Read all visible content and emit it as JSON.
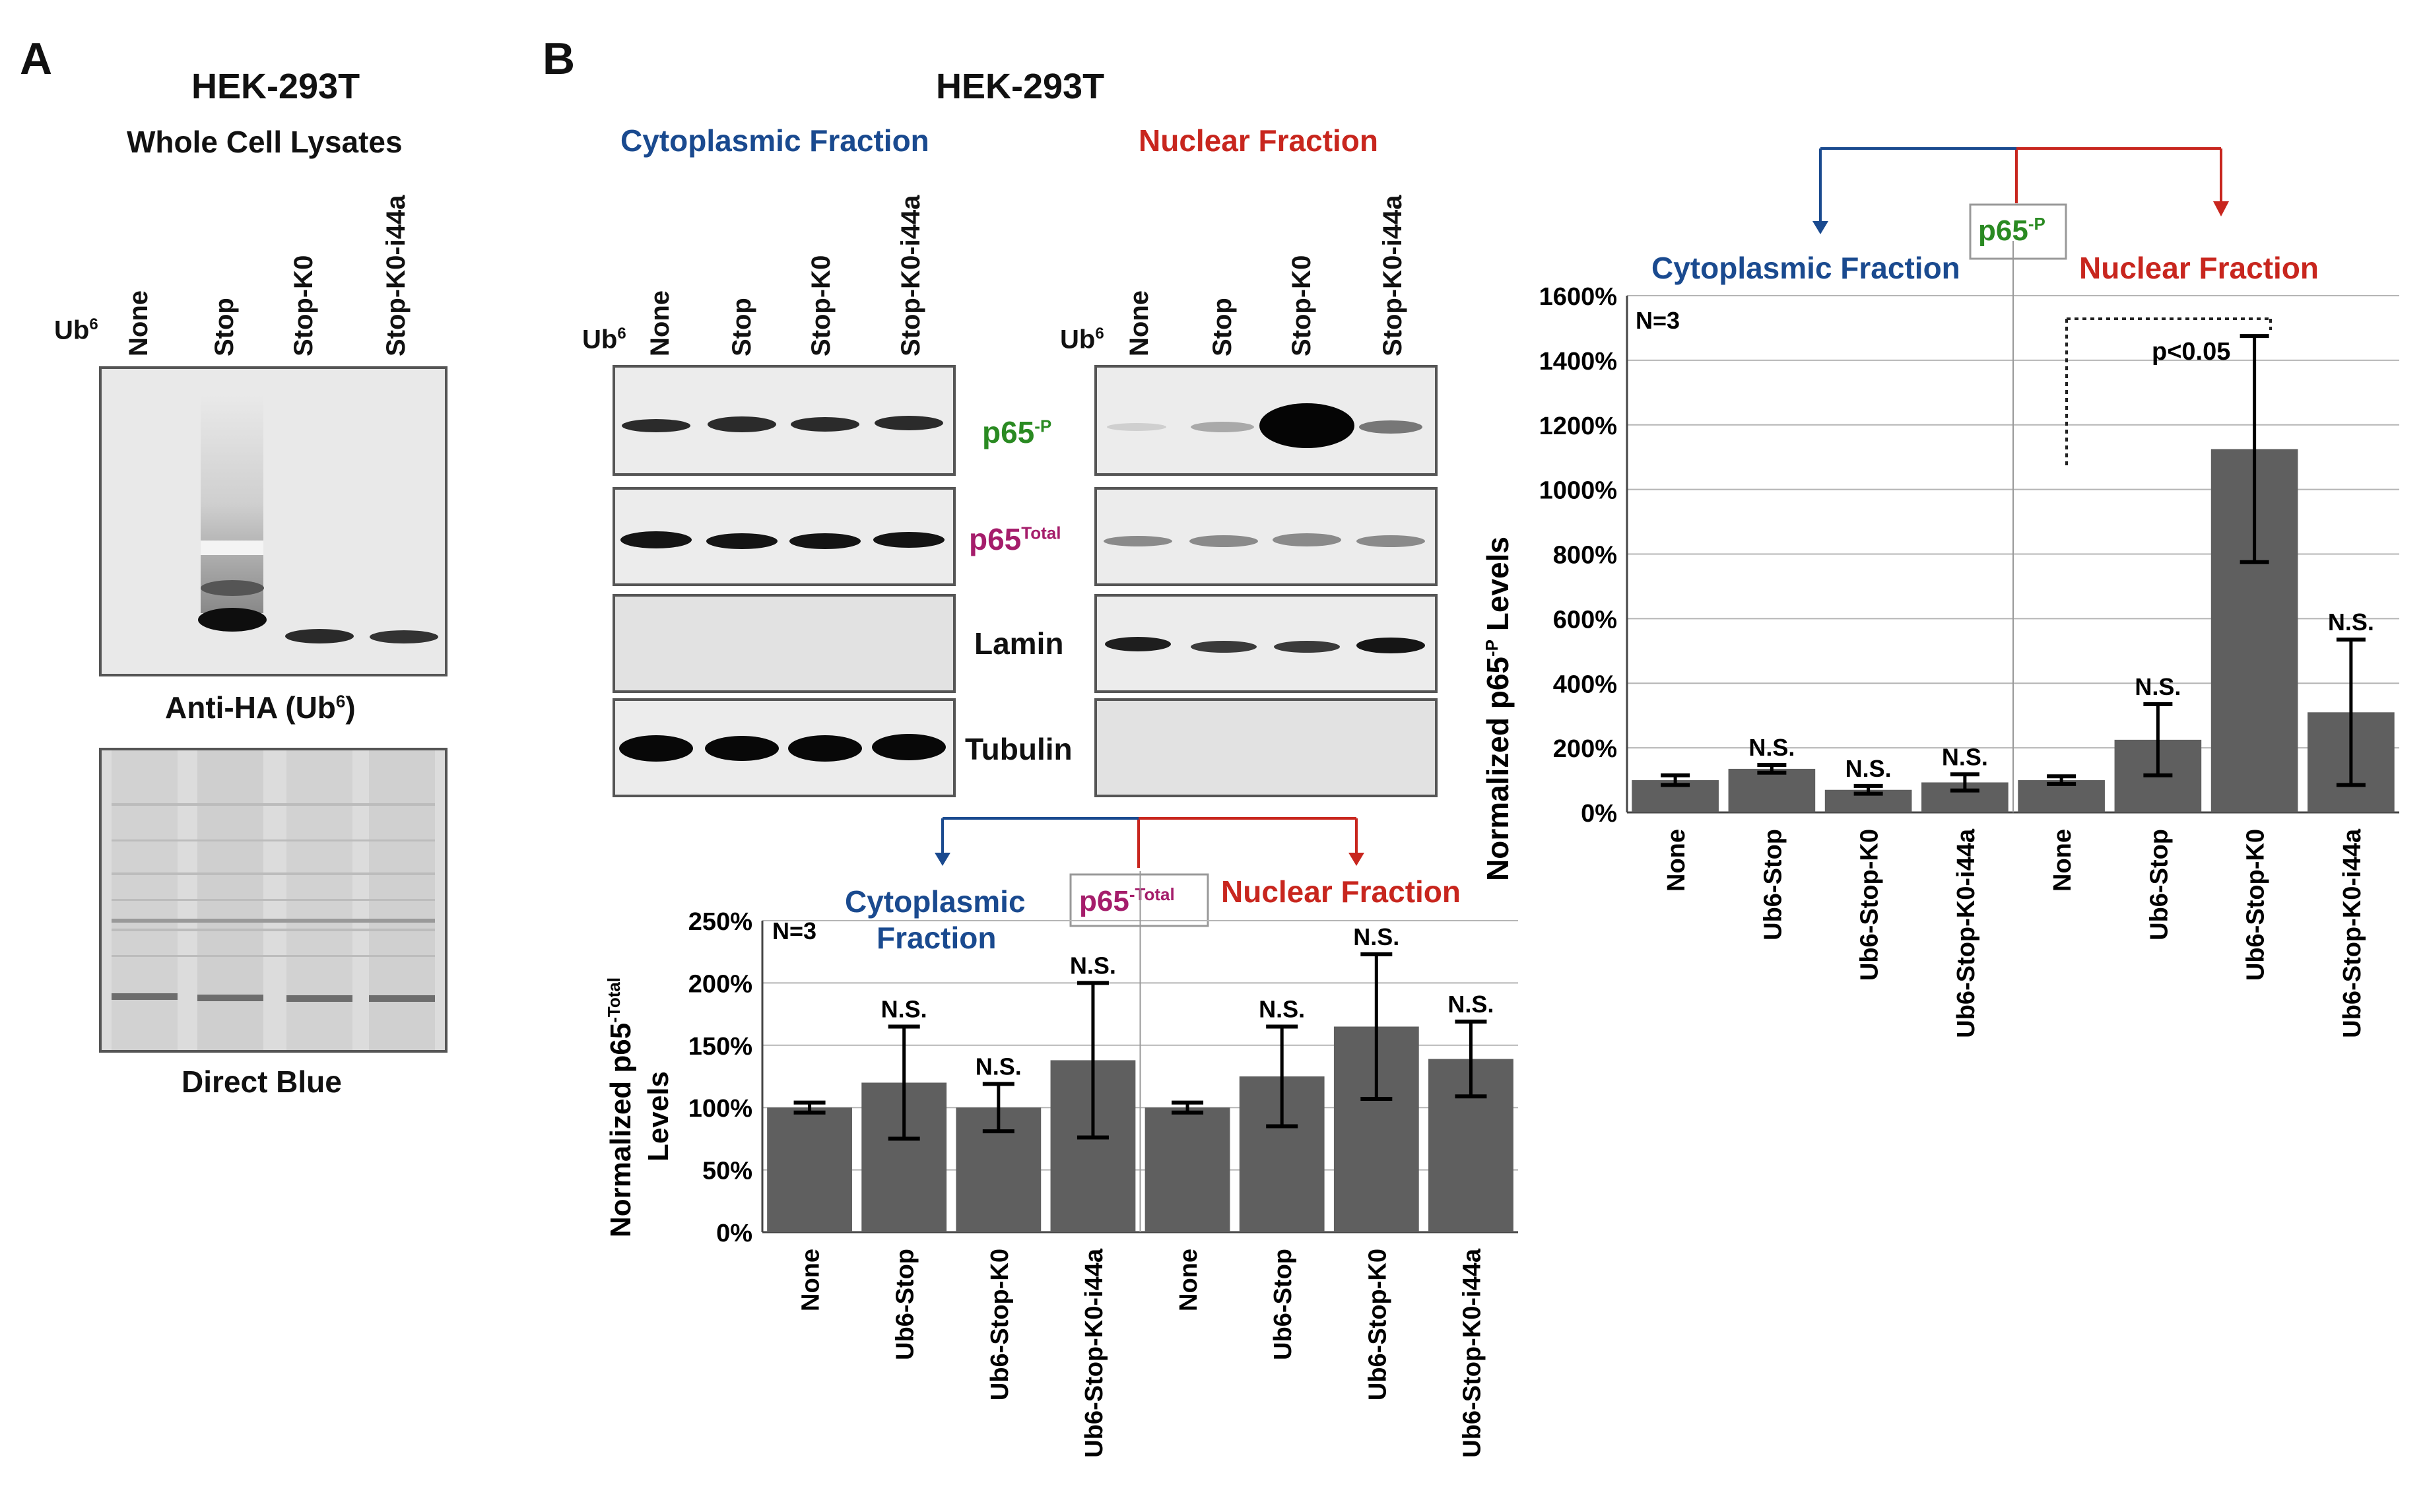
{
  "panelA": {
    "letter": "A",
    "title": "HEK-293T",
    "subtitle": "Whole Cell Lysates",
    "ub_label": "Ub",
    "ub_sup": "6",
    "lanes": [
      "None",
      "Stop",
      "Stop-K0",
      "Stop-K0-i44a"
    ],
    "blot1_caption": "Anti-HA (Ub",
    "blot1_caption_sup": "6",
    "blot1_caption_end": ")",
    "blot2_caption": "Direct Blue"
  },
  "panelB": {
    "letter": "B",
    "title": "HEK-293T",
    "cyto_header": "Cytoplasmic Fraction",
    "nuc_header": "Nuclear Fraction",
    "ub_label": "Ub",
    "ub_sup": "6",
    "lanes": [
      "None",
      "Stop",
      "Stop-K0",
      "Stop-K0-i44a"
    ],
    "rows": {
      "p65p": {
        "base": "p65",
        "sup": "-P"
      },
      "p65total": {
        "base": "p65",
        "sup": "Total"
      },
      "lamin": "Lamin",
      "tubulin": "Tubulin"
    }
  },
  "colors": {
    "cytoplasmic": "#1a4a8f",
    "nuclear": "#c8261e",
    "p65p": "#2a8a22",
    "p65total": "#a51d6b",
    "bar": "#5f5f5f"
  },
  "chart_data": [
    {
      "type": "bar",
      "title": "p65-P",
      "title_base": "p65",
      "title_sup": "-P",
      "group_labels": [
        "Cytoplasmic Fraction",
        "Nuclear Fraction"
      ],
      "ylabel": "Normalized p65",
      "ylabel_sup": "-P",
      "ylabel_end": " Levels",
      "ylim": [
        0,
        1600
      ],
      "yticks": [
        0,
        200,
        400,
        600,
        800,
        1000,
        1200,
        1400,
        1600
      ],
      "ytick_labels": [
        "0%",
        "200%",
        "400%",
        "600%",
        "800%",
        "1000%",
        "1200%",
        "1400%",
        "1600%"
      ],
      "categories": [
        "None",
        "Ub6-Stop",
        "Ub6-Stop-K0",
        "Ub6-Stop-K0-i44a",
        "None",
        "Ub6-Stop",
        "Ub6-Stop-K0",
        "Ub6-Stop-K0-i44a"
      ],
      "values": [
        100,
        135,
        70,
        93,
        100,
        225,
        1125,
        310
      ],
      "errors": [
        15,
        12,
        12,
        25,
        12,
        110,
        350,
        225
      ],
      "annotations": [
        "",
        "N.S.",
        "N.S.",
        "N.S.",
        "",
        "N.S.",
        "",
        "N.S."
      ],
      "n_label": "N=3",
      "p_label": "p<0.05"
    },
    {
      "type": "bar",
      "title": "p65-Total",
      "title_base": "p65",
      "title_sup": "-Total",
      "group_labels": [
        "Cytoplasmic",
        "Fraction",
        "Nuclear Fraction"
      ],
      "ylabel": "Normalized p65",
      "ylabel_sup": "-Total",
      "ylabel_line2": "Levels",
      "ylim": [
        0,
        250
      ],
      "yticks": [
        0,
        50,
        100,
        150,
        200,
        250
      ],
      "ytick_labels": [
        "0%",
        "50%",
        "100%",
        "150%",
        "200%",
        "250%"
      ],
      "categories": [
        "None",
        "Ub6-Stop",
        "Ub6-Stop-K0",
        "Ub6-Stop-K0-i44a",
        "None",
        "Ub6-Stop",
        "Ub6-Stop-K0",
        "Ub6-Stop-K0-i44a"
      ],
      "values": [
        100,
        120,
        100,
        138,
        100,
        125,
        165,
        139
      ],
      "errors": [
        4,
        45,
        19,
        62,
        4,
        40,
        58,
        30
      ],
      "annotations": [
        "",
        "N.S.",
        "N.S.",
        "N.S.",
        "",
        "N.S.",
        "N.S.",
        "N.S."
      ],
      "n_label": "N=3"
    }
  ]
}
